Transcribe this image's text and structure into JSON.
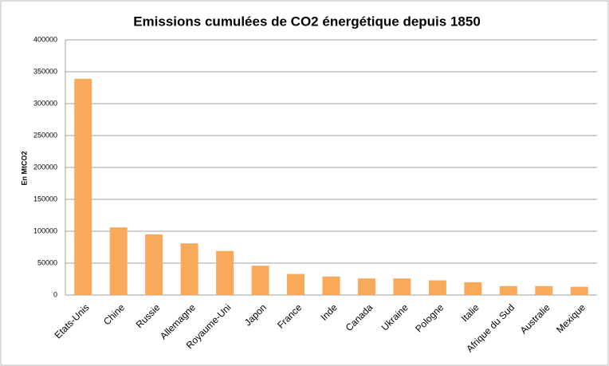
{
  "chart_data": {
    "type": "bar",
    "title": "Emissions cumulées de CO2 énergétique depuis 1850",
    "y_label": "En MtCO2",
    "categories": [
      "Etats-Unis",
      "Chine",
      "Russie",
      "Allemagne",
      "Royaume-Uni",
      "Japon",
      "France",
      "Inde",
      "Canada",
      "Ukraine",
      "Pologne",
      "Italie",
      "Afrique du Sud",
      "Australie",
      "Mexique"
    ],
    "values": [
      339000,
      106000,
      95000,
      81000,
      69000,
      46000,
      33000,
      29000,
      26000,
      26000,
      23000,
      20000,
      14000,
      14000,
      13000
    ],
    "color": "#f9a95a",
    "ylim": [
      0,
      400000
    ],
    "yticks": [
      0,
      50000,
      100000,
      150000,
      200000,
      250000,
      300000,
      350000,
      400000
    ],
    "grid": true
  }
}
